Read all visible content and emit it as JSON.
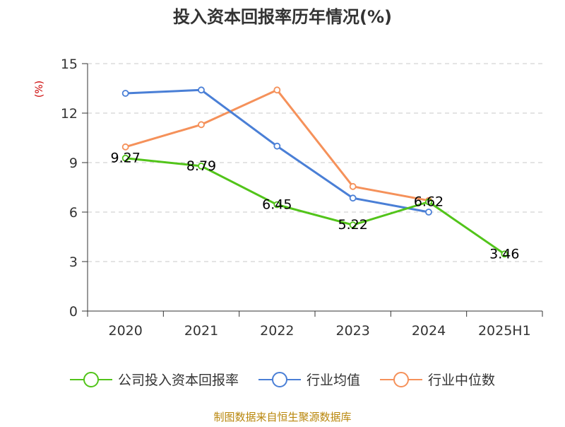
{
  "chart_data": {
    "type": "line",
    "title": "投入资本回报率历年情况(%)",
    "unit_label": "(%)",
    "categories": [
      "2020",
      "2021",
      "2022",
      "2023",
      "2024",
      "2025H1"
    ],
    "ylim": [
      0,
      15
    ],
    "yticks": [
      0,
      3,
      6,
      9,
      12,
      15
    ],
    "grid": true,
    "legend_position": "bottom",
    "series": [
      {
        "name": "公司投入资本回报率",
        "color": "#52c41a",
        "values": [
          9.27,
          8.79,
          6.45,
          5.22,
          6.62,
          3.46
        ],
        "data_labels": [
          "9.27",
          "8.79",
          "6.45",
          "5.22",
          "6.62",
          "3.46"
        ]
      },
      {
        "name": "行业均值",
        "color": "#4a7fd6",
        "values": [
          13.2,
          13.4,
          10.0,
          6.85,
          6.0,
          null
        ]
      },
      {
        "name": "行业中位数",
        "color": "#f5915a",
        "values": [
          9.95,
          11.3,
          13.4,
          7.55,
          6.7,
          null
        ]
      }
    ],
    "source": "制图数据来自恒生聚源数据库"
  }
}
